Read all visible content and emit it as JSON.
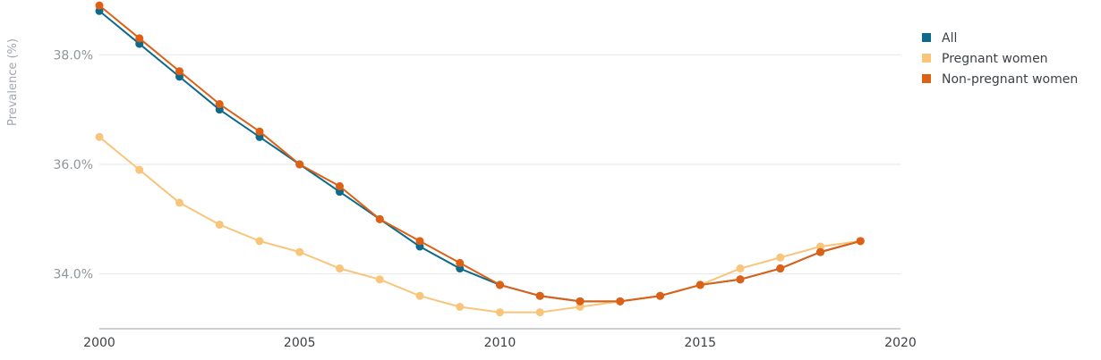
{
  "chart_data": {
    "type": "line",
    "title": "",
    "xlabel": "",
    "ylabel": "Prevalence (%)",
    "xlim": [
      2000,
      2020
    ],
    "ylim": [
      33.0,
      39.0
    ],
    "x_ticks": [
      "2000",
      "2005",
      "2010",
      "2015",
      "2020"
    ],
    "y_ticks": [
      "34.0%",
      "36.0%",
      "38.0%"
    ],
    "grid": "horizontal",
    "legend_position": "top-right",
    "x": [
      2000,
      2001,
      2002,
      2003,
      2004,
      2005,
      2006,
      2007,
      2008,
      2009,
      2010,
      2011,
      2012,
      2013,
      2014,
      2015,
      2016,
      2017,
      2018,
      2019
    ],
    "series": [
      {
        "name": "All",
        "color": "#0d6a8a",
        "values": [
          38.8,
          38.2,
          37.6,
          37.0,
          36.5,
          36.0,
          35.5,
          35.0,
          34.5,
          34.1,
          33.8,
          33.6,
          33.5,
          33.5,
          33.6,
          33.8,
          33.9,
          34.1,
          34.4,
          34.6
        ]
      },
      {
        "name": "Pregnant women",
        "color": "#f8c57a",
        "values": [
          36.5,
          35.9,
          35.3,
          34.9,
          34.6,
          34.4,
          34.1,
          33.9,
          33.6,
          33.4,
          33.3,
          33.3,
          33.4,
          33.5,
          33.6,
          33.8,
          34.1,
          34.3,
          34.5,
          34.6
        ]
      },
      {
        "name": "Non-pregnant women",
        "color": "#de6015",
        "values": [
          38.9,
          38.3,
          37.7,
          37.1,
          36.6,
          36.0,
          35.6,
          35.0,
          34.6,
          34.2,
          33.8,
          33.6,
          33.5,
          33.5,
          33.6,
          33.8,
          33.9,
          34.1,
          34.4,
          34.6
        ]
      }
    ]
  }
}
